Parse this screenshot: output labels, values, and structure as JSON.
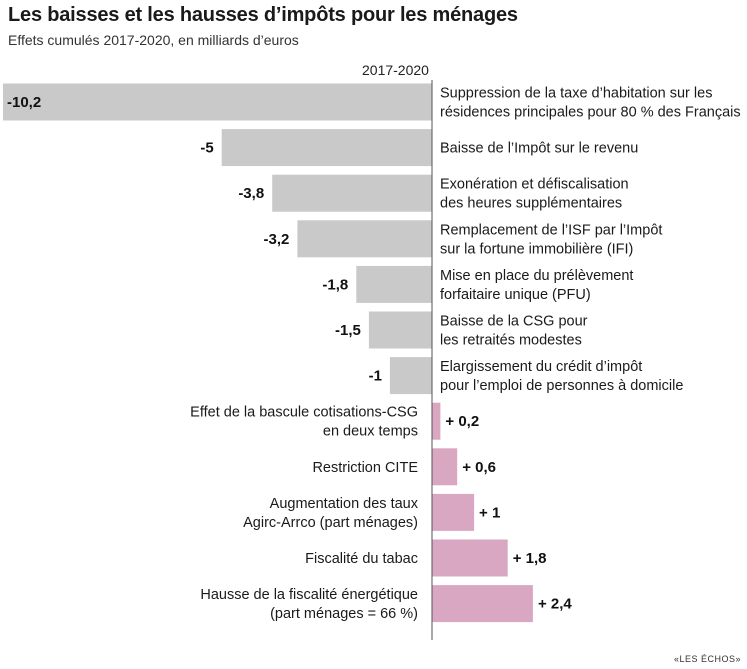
{
  "title": "Les baisses et les hausses d’impôts pour les ménages",
  "subtitle": "Effets cumulés 2017-2020, en milliards d’euros",
  "period_label": "2017-2020",
  "source": "«LES ÉCHOS»",
  "colors": {
    "negative": "#c9c9c9",
    "positive": "#d9a7c2",
    "axis": "#555555"
  },
  "chart_data": {
    "type": "bar",
    "orientation": "horizontal",
    "title": "Les baisses et les hausses d’impôts pour les ménages",
    "subtitle": "Effets cumulés 2017-2020, en milliards d’euros",
    "xlabel": "",
    "ylabel": "",
    "xlim": [
      -10.2,
      2.4
    ],
    "grid": false,
    "categories": [
      [
        "Suppression de la taxe d’habitation sur les",
        "résidences principales pour 80 % des Français"
      ],
      [
        "Baisse de l’Impôt sur le revenu"
      ],
      [
        "Exonération et défiscalisation",
        "des heures supplémentaires"
      ],
      [
        "Remplacement de l’ISF par l’Impôt",
        "sur la fortune immobilière (IFI)"
      ],
      [
        "Mise en place du prélèvement",
        "forfaitaire unique (PFU)"
      ],
      [
        "Baisse de la CSG pour",
        "les retraités modestes"
      ],
      [
        "Elargissement du crédit d’impôt",
        "pour l’emploi de personnes à domicile"
      ],
      [
        "Effet de la bascule cotisations-CSG",
        "en deux temps"
      ],
      [
        "Restriction CITE"
      ],
      [
        "Augmentation des taux",
        "Agirc-Arrco (part ménages)"
      ],
      [
        "Fiscalité du tabac"
      ],
      [
        "Hausse de la fiscalité énergétique",
        "(part ménages = 66 %)"
      ]
    ],
    "values": [
      -10.2,
      -5,
      -3.8,
      -3.2,
      -1.8,
      -1.5,
      -1,
      0.2,
      0.6,
      1,
      1.8,
      2.4
    ],
    "value_labels": [
      "-10,2",
      "-5",
      "-3,8",
      "-3,2",
      "-1,8",
      "-1,5",
      "-1",
      "+ 0,2",
      "+ 0,6",
      "+ 1",
      "+ 1,8",
      "+ 2,4"
    ]
  }
}
